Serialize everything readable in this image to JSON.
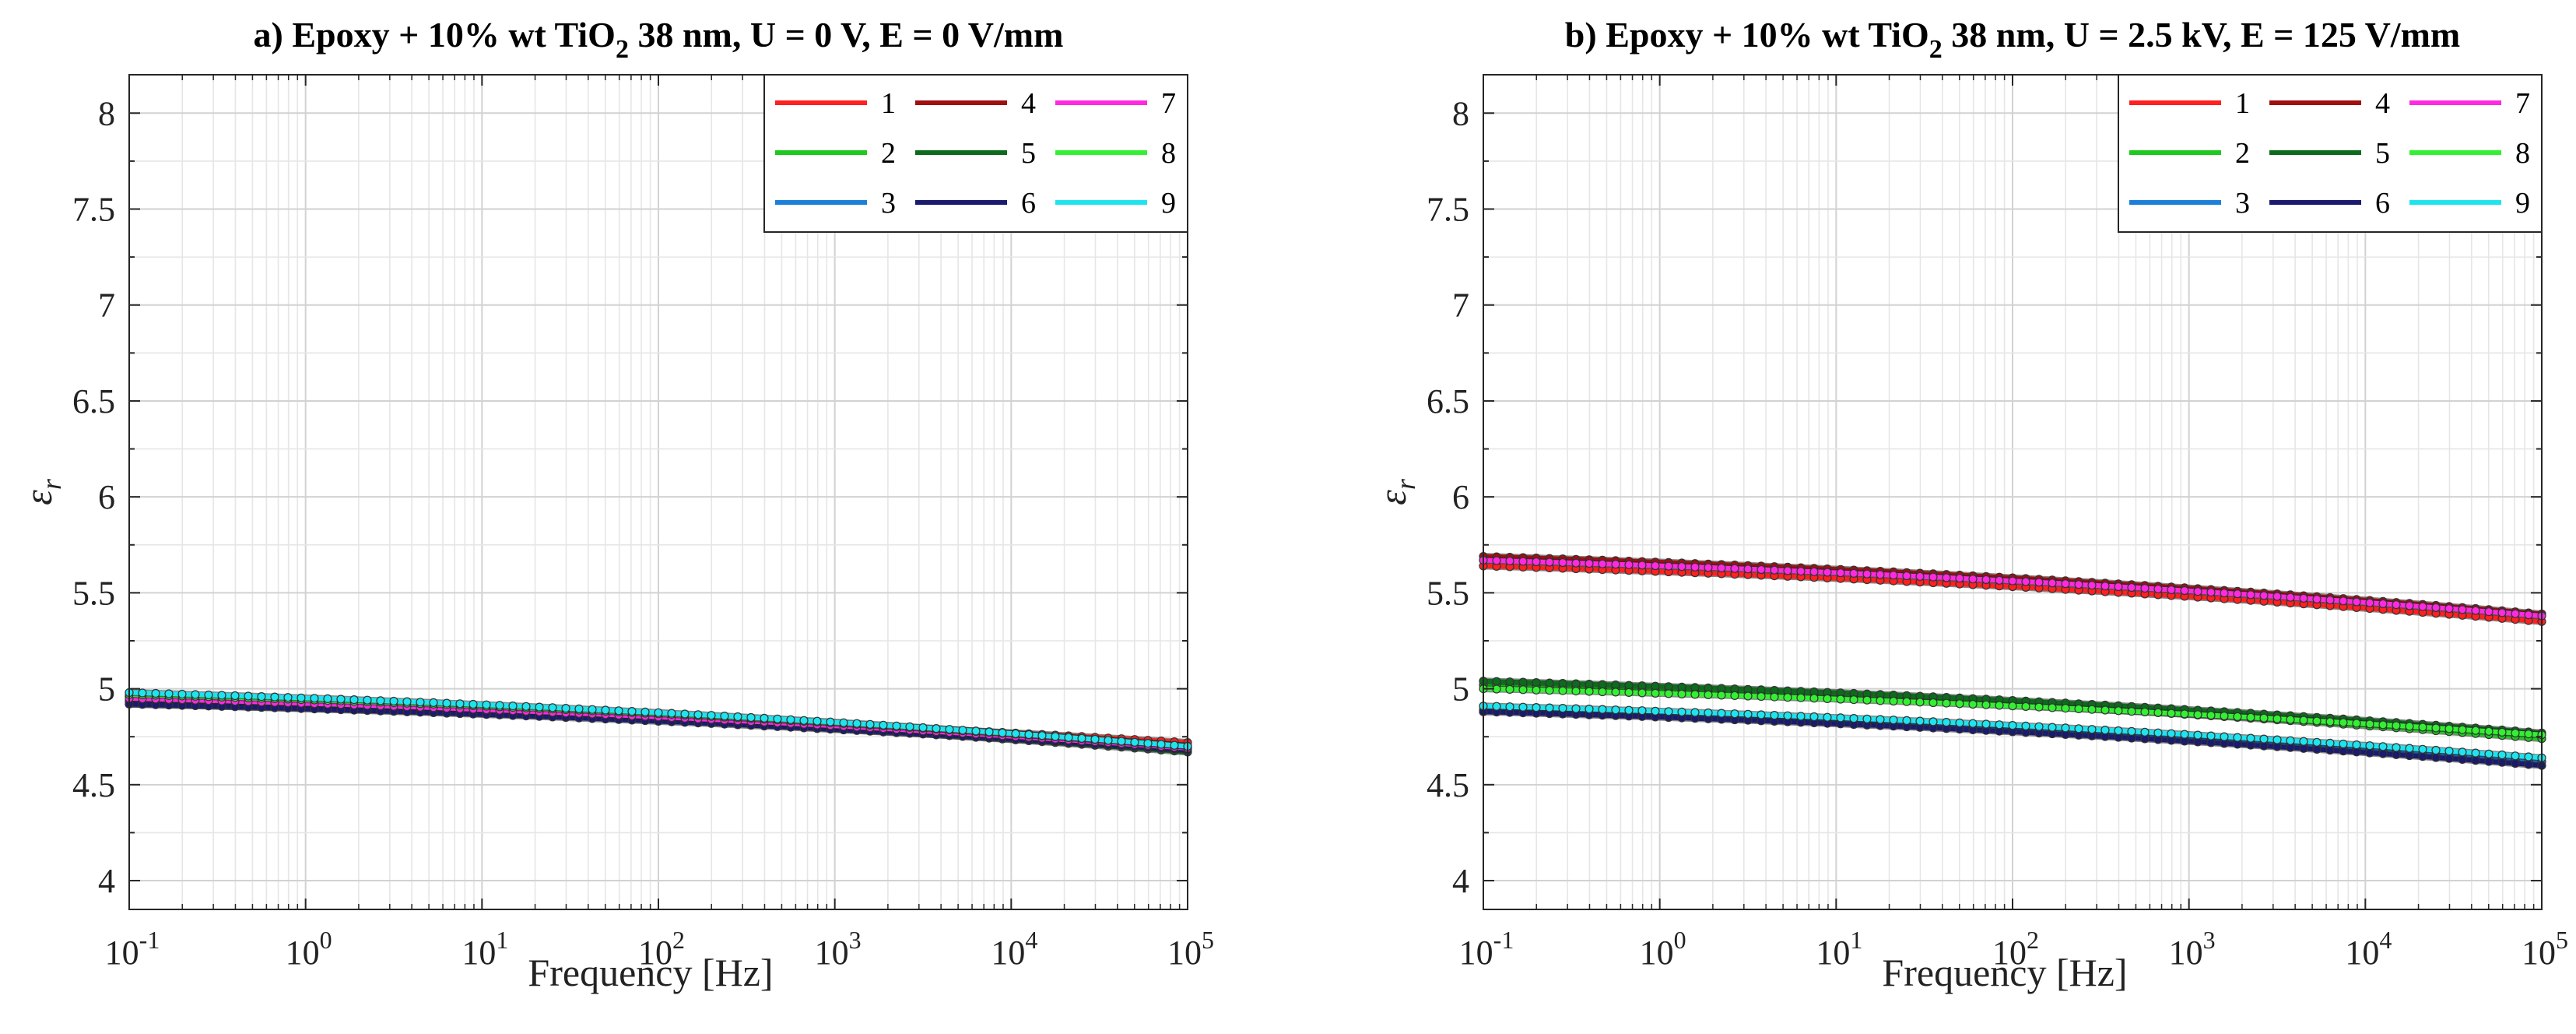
{
  "chart_data": [
    {
      "type": "line",
      "panel": "a",
      "title": {
        "prefix": "a) Epoxy + 10% wt TiO",
        "sub": "2",
        "suffix": " 38 nm, U = 0 V, E = 0 V/mm"
      },
      "xlabel": "Frequency [Hz]",
      "ylabel": "εr",
      "xscale": "log",
      "xlim_exp": [
        -1,
        5
      ],
      "ylim": [
        3.85,
        8.2
      ],
      "yticks": [
        4,
        4.5,
        5,
        5.5,
        6,
        6.5,
        7,
        7.5,
        8
      ],
      "ytick_labels": [
        "4",
        "4.5",
        "5",
        "5.5",
        "6",
        "6.5",
        "7",
        "7.5",
        "8"
      ],
      "xtick_base": "10",
      "xtick_exponents": [
        "-1",
        "0",
        "1",
        "2",
        "3",
        "4",
        "5"
      ],
      "grid": true,
      "legend": {
        "placement": "top-right",
        "columns": 3,
        "entries": [
          "1",
          "2",
          "3",
          "4",
          "5",
          "6",
          "7",
          "8",
          "9"
        ]
      },
      "series": [
        {
          "name": "1",
          "color": "#ff2020",
          "y_start": 4.93,
          "y_end": 4.72
        },
        {
          "name": "2",
          "color": "#1ec81e",
          "y_start": 4.96,
          "y_end": 4.7
        },
        {
          "name": "3",
          "color": "#1c7fd8",
          "y_start": 4.96,
          "y_end": 4.69
        },
        {
          "name": "4",
          "color": "#a01010",
          "y_start": 4.92,
          "y_end": 4.7
        },
        {
          "name": "5",
          "color": "#0c6b1c",
          "y_start": 4.94,
          "y_end": 4.67
        },
        {
          "name": "6",
          "color": "#1a1a6e",
          "y_start": 4.92,
          "y_end": 4.68
        },
        {
          "name": "7",
          "color": "#ff2adf",
          "y_start": 4.95,
          "y_end": 4.69
        },
        {
          "name": "8",
          "color": "#33f033",
          "y_start": 4.97,
          "y_end": 4.7
        },
        {
          "name": "9",
          "color": "#1fe3ee",
          "y_start": 4.98,
          "y_end": 4.7
        }
      ]
    },
    {
      "type": "line",
      "panel": "b",
      "title": {
        "prefix": "b) Epoxy + 10% wt TiO",
        "sub": "2",
        "suffix": " 38 nm, U = 2.5 kV, E = 125 V/mm"
      },
      "xlabel": "Frequency [Hz]",
      "ylabel": "εr",
      "xscale": "log",
      "xlim_exp": [
        -1,
        5
      ],
      "ylim": [
        3.85,
        8.2
      ],
      "yticks": [
        4,
        4.5,
        5,
        5.5,
        6,
        6.5,
        7,
        7.5,
        8
      ],
      "ytick_labels": [
        "4",
        "4.5",
        "5",
        "5.5",
        "6",
        "6.5",
        "7",
        "7.5",
        "8"
      ],
      "xtick_base": "10",
      "xtick_exponents": [
        "-1",
        "0",
        "1",
        "2",
        "3",
        "4",
        "5"
      ],
      "grid": true,
      "legend": {
        "placement": "top-right",
        "columns": 3,
        "entries": [
          "1",
          "2",
          "3",
          "4",
          "5",
          "6",
          "7",
          "8",
          "9"
        ]
      },
      "series": [
        {
          "name": "1",
          "color": "#ff2020",
          "y_start": 5.64,
          "y_end": 5.35
        },
        {
          "name": "2",
          "color": "#1ec81e",
          "y_start": 5.02,
          "y_end": 4.74
        },
        {
          "name": "3",
          "color": "#1c7fd8",
          "y_start": 4.89,
          "y_end": 4.62
        },
        {
          "name": "4",
          "color": "#a01010",
          "y_start": 5.69,
          "y_end": 5.39
        },
        {
          "name": "5",
          "color": "#0c6b1c",
          "y_start": 5.04,
          "y_end": 4.77
        },
        {
          "name": "6",
          "color": "#1a1a6e",
          "y_start": 4.88,
          "y_end": 4.6
        },
        {
          "name": "7",
          "color": "#ff2adf",
          "y_start": 5.67,
          "y_end": 5.38
        },
        {
          "name": "8",
          "color": "#33f033",
          "y_start": 5.0,
          "y_end": 4.76
        },
        {
          "name": "9",
          "color": "#1fe3ee",
          "y_start": 4.91,
          "y_end": 4.64
        }
      ]
    }
  ]
}
